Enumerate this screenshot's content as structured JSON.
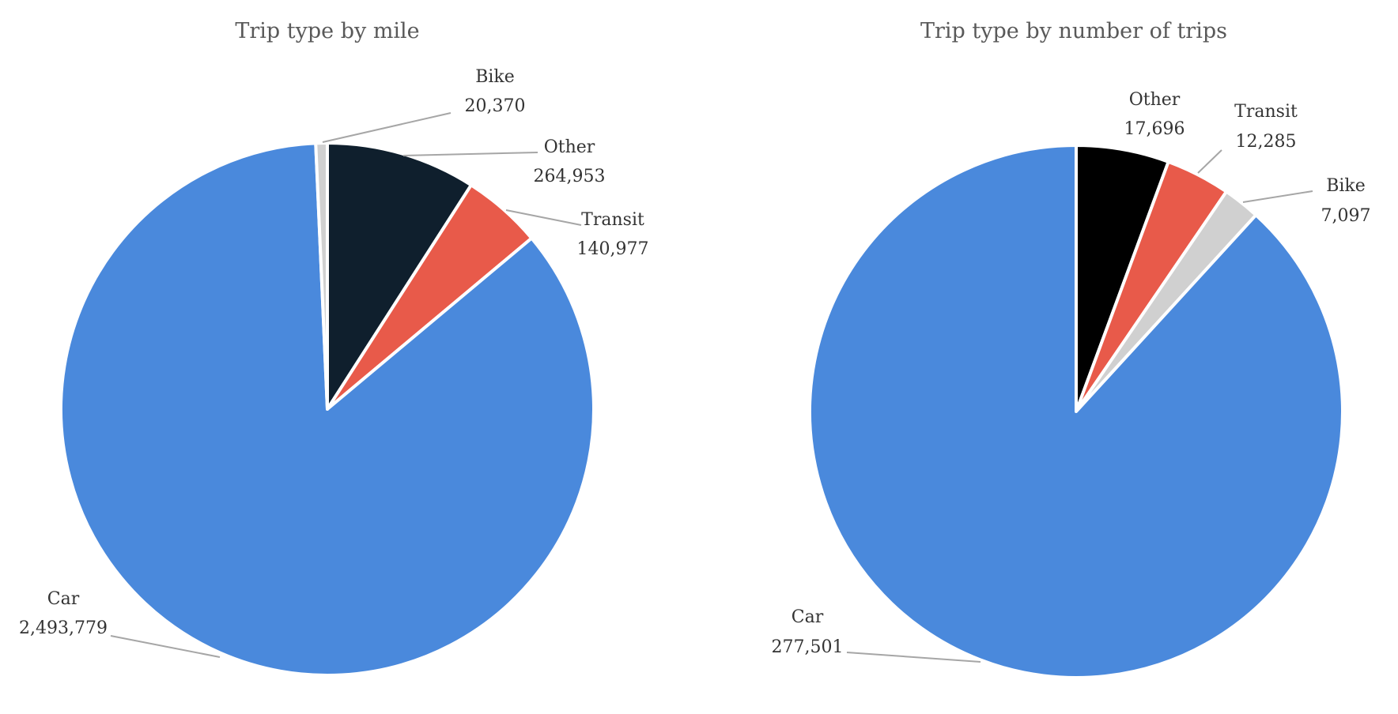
{
  "colors": {
    "Car": "#4a89dc",
    "Other_miles": "#0f1f2d",
    "Other_trips": "#000000",
    "Transit": "#e85a4a",
    "Bike": "#d0d0d0",
    "leader": "#a6a6a6",
    "title": "#595959"
  },
  "chart_data": [
    {
      "type": "pie",
      "title": "Trip type by mile",
      "slices": [
        {
          "label": "Other",
          "value": 264953,
          "value_label": "264,953"
        },
        {
          "label": "Transit",
          "value": 140977,
          "value_label": "140,977"
        },
        {
          "label": "Car",
          "value": 2493779,
          "value_label": "2,493,779"
        },
        {
          "label": "Bike",
          "value": 20370,
          "value_label": "20,370"
        }
      ]
    },
    {
      "type": "pie",
      "title": "Trip type by number of trips",
      "slices": [
        {
          "label": "Other",
          "value": 17696,
          "value_label": "17,696"
        },
        {
          "label": "Transit",
          "value": 12285,
          "value_label": "12,285"
        },
        {
          "label": "Bike",
          "value": 7097,
          "value_label": "7,097"
        },
        {
          "label": "Car",
          "value": 277501,
          "value_label": "277,501"
        }
      ]
    }
  ]
}
